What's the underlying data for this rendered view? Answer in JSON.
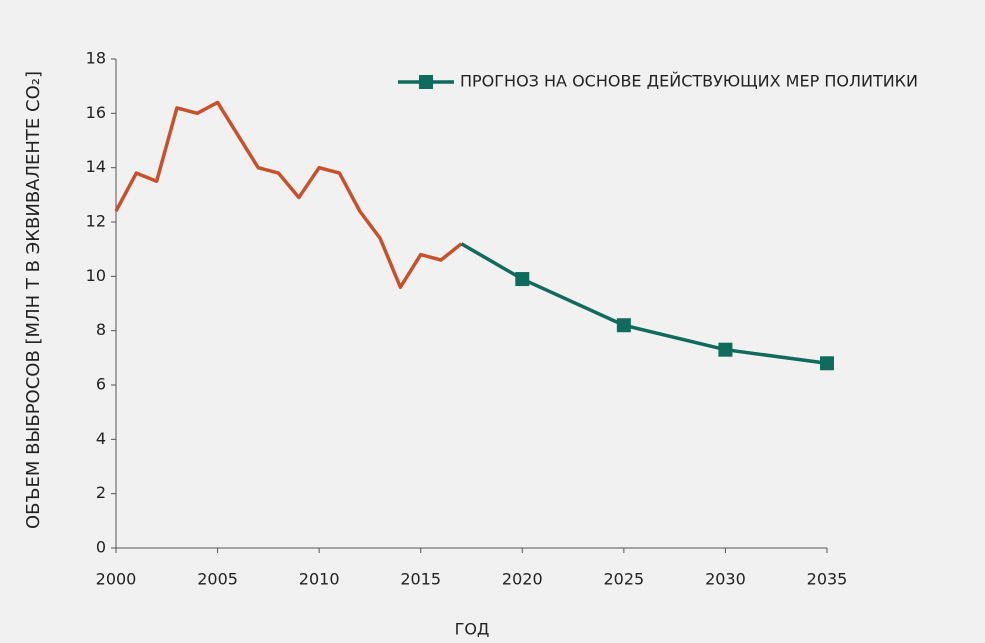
{
  "chart_data": {
    "type": "line",
    "x_label": "ГОД",
    "y_label": "ОБЪЕМ ВЫБРОСОВ [МЛН Т В ЭКВИВАЛЕНТЕ CO₂]",
    "series": [
      {
        "color": "#c8502a",
        "x": [
          2000,
          2001,
          2002,
          2003,
          2004,
          2005,
          2006,
          2007,
          2008,
          2009,
          2010,
          2011,
          2012,
          2013,
          2014,
          2015,
          2016,
          2017
        ],
        "values": [
          12.4,
          13.8,
          13.5,
          16.2,
          16.0,
          16.4,
          15.2,
          14.0,
          13.8,
          12.9,
          14.0,
          13.8,
          12.4,
          11.4,
          9.6,
          10.8,
          10.6,
          11.2
        ]
      },
      {
        "name": "ПРОГНОЗ НА ОСНОВЕ ДЕЙСТВУЮЩИХ МЕР ПОЛИТИКИ",
        "color": "#0f6b5c",
        "x": [
          2017,
          2020,
          2025,
          2030,
          2035
        ],
        "values": [
          11.2,
          9.9,
          8.2,
          7.3,
          6.8
        ]
      }
    ],
    "xlim": [
      2000,
      2035
    ],
    "xticks": [
      2000,
      2005,
      2010,
      2015,
      2020,
      2025,
      2030,
      2035
    ],
    "ylim": [
      0,
      18
    ],
    "yticks": [
      0,
      2,
      4,
      6,
      8,
      10,
      12,
      14,
      16,
      18
    ],
    "legend": "top-right"
  }
}
